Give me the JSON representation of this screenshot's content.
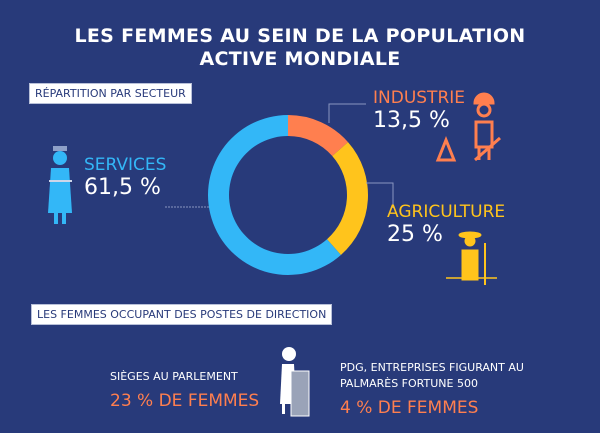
{
  "title_line1": "LES FEMMES AU SEIN DE LA POPULATION",
  "title_line2": "ACTIVE MONDIALE",
  "section1_label": "RÉPARTITION PAR SECTEUR",
  "section2_label": "LES FEMMES OCCUPANT DES POSTES DE DIRECTION",
  "chart_data": {
    "type": "pie",
    "subtype": "donut",
    "categories": [
      "INDUSTRIE",
      "AGRICULTURE",
      "SERVICES"
    ],
    "values": [
      13.5,
      25,
      61.5
    ],
    "value_labels": [
      "13,5 %",
      "25 %",
      "61,5 %"
    ],
    "colors": [
      "#ff7f4f",
      "#ffc41c",
      "#33b7f7"
    ],
    "title": "RÉPARTITION PAR SECTEUR"
  },
  "icons": {
    "services": "waitress-icon",
    "industrie": "construction-worker-icon",
    "agriculture": "farmer-icon",
    "direction": "speaker-podium-icon"
  },
  "direction": {
    "parliament_label": "SIÈGES AU PARLEMENT",
    "parliament_value": "23 % DE FEMMES",
    "ceo_label_line1": "PDG, ENTREPRISES FIGURANT AU",
    "ceo_label_line2": "PALMARÈS FORTUNE 500",
    "ceo_value": "4 % DE FEMMES"
  },
  "colors": {
    "background": "#283a7a",
    "accent": "#ff7f4f"
  }
}
